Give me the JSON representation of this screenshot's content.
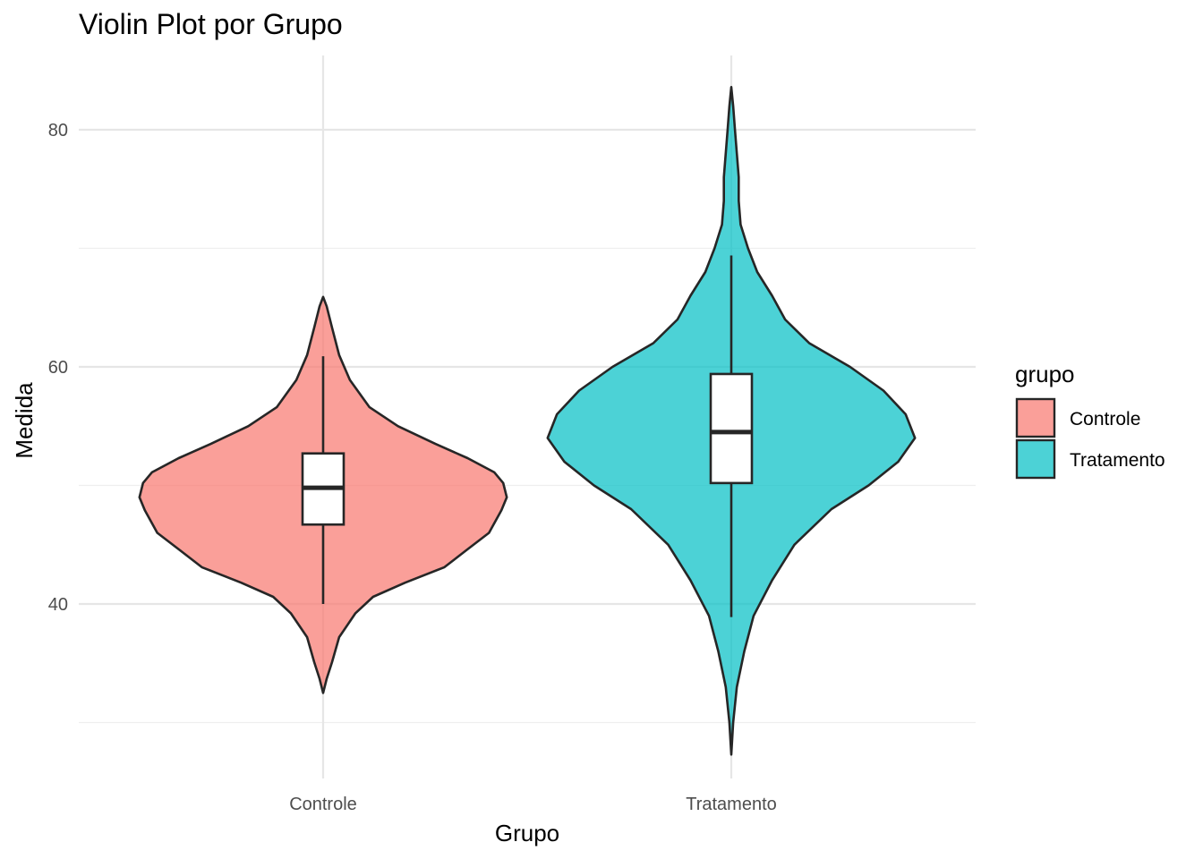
{
  "chart_data": {
    "type": "violin",
    "title": "Violin Plot por Grupo",
    "xlabel": "Grupo",
    "ylabel": "Medida",
    "categories": [
      "Controle",
      "Tratamento"
    ],
    "ylim": [
      26,
      86
    ],
    "yticks": [
      40,
      60,
      80
    ],
    "yminor": [
      30,
      50,
      70
    ],
    "grid": true,
    "legend": {
      "title": "grupo",
      "position": "right",
      "entries": [
        "Controle",
        "Tratamento"
      ]
    },
    "colors": {
      "Controle": "#F8766D",
      "Tratamento": "#00BFC4"
    },
    "series": [
      {
        "name": "Controle",
        "box": {
          "whisker_low": 40.0,
          "q1": 46.7,
          "median": 49.8,
          "q3": 52.7,
          "whisker_high": 60.9
        },
        "density": {
          "y": [
            32.5,
            33.7,
            35.1,
            37.2,
            39.2,
            40.6,
            41.8,
            43.1,
            44.5,
            46.0,
            47.9,
            49.0,
            50.2,
            51.1,
            52.3,
            53.5,
            55.0,
            56.6,
            58.9,
            61.0,
            63.3,
            65.1,
            65.9
          ],
          "w": [
            0.0,
            0.02,
            0.05,
            0.09,
            0.18,
            0.28,
            0.46,
            0.68,
            0.8,
            0.93,
            1.0,
            1.03,
            1.01,
            0.96,
            0.81,
            0.63,
            0.42,
            0.26,
            0.15,
            0.09,
            0.05,
            0.02,
            0.0
          ],
          "max_half_width": 0.45
        }
      },
      {
        "name": "Tratamento",
        "box": {
          "whisker_low": 38.9,
          "q1": 50.2,
          "median": 54.5,
          "q3": 59.4,
          "whisker_high": 69.4
        },
        "density": {
          "y": [
            27.3,
            30.0,
            33.0,
            36.0,
            39.0,
            42.0,
            45.0,
            48.0,
            50.0,
            52.0,
            54.0,
            56.0,
            58.0,
            60.0,
            62.0,
            64.0,
            66.0,
            68.0,
            70.0,
            72.0,
            74.0,
            76.0,
            78.0,
            80.0,
            82.0,
            83.6
          ],
          "w": [
            0.0,
            0.01,
            0.03,
            0.07,
            0.12,
            0.22,
            0.34,
            0.54,
            0.74,
            0.9,
            0.99,
            0.94,
            0.82,
            0.64,
            0.42,
            0.29,
            0.22,
            0.14,
            0.09,
            0.05,
            0.04,
            0.04,
            0.03,
            0.02,
            0.01,
            0.0
          ],
          "max_half_width": 0.45
        }
      }
    ]
  }
}
